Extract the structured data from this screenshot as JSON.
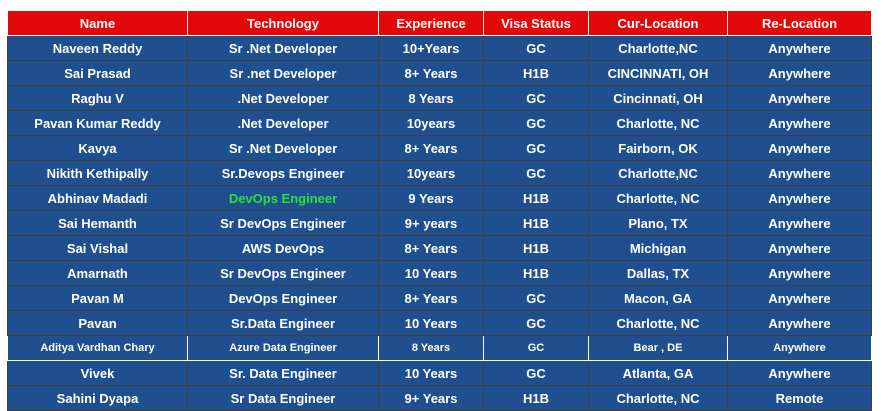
{
  "table": {
    "header": [
      "Name",
      "Technology",
      "Experience",
      "Visa Status",
      "Cur-Location",
      "Re-Location"
    ],
    "rows": [
      [
        "Naveen Reddy",
        "Sr .Net Developer",
        "10+Years",
        "GC",
        "Charlotte,NC",
        "Anywhere"
      ],
      [
        "Sai Prasad",
        "Sr .net Developer",
        "8+ Years",
        "H1B",
        "CINCINNATI, OH",
        "Anywhere"
      ],
      [
        "Raghu V",
        ".Net Developer",
        "8 Years",
        "GC",
        "Cincinnati, OH",
        "Anywhere"
      ],
      [
        "Pavan Kumar Reddy",
        ".Net Developer",
        "10years",
        "GC",
        "Charlotte, NC",
        "Anywhere"
      ],
      [
        "Kavya",
        "Sr .Net Developer",
        "8+ Years",
        "GC",
        "Fairborn, OK",
        "Anywhere"
      ],
      [
        "Nikith Kethipally",
        "Sr.Devops Engineer",
        "10years",
        "GC",
        "Charlotte,NC",
        "Anywhere"
      ],
      [
        "Abhinav Madadi",
        "DevOps Engineer",
        "9 Years",
        "H1B",
        "Charlotte, NC",
        "Anywhere"
      ],
      [
        "Sai Hemanth",
        "Sr DevOps Engineer",
        "9+ years",
        "H1B",
        "Plano, TX",
        "Anywhere"
      ],
      [
        "Sai Vishal",
        "AWS DevOps",
        "8+ Years",
        "H1B",
        "Michigan",
        "Anywhere"
      ],
      [
        "Amarnath",
        "Sr DevOps Engineer",
        "10 Years",
        "H1B",
        "Dallas, TX",
        "Anywhere"
      ],
      [
        "Pavan M",
        "DevOps Engineer",
        "8+ Years",
        "GC",
        "Macon, GA",
        "Anywhere"
      ],
      [
        "Pavan",
        "Sr.Data Engineer",
        "10 Years",
        "GC",
        "Charlotte, NC",
        "Anywhere"
      ],
      [
        "Aditya Vardhan Chary",
        "Azure Data Engineer",
        "8 Years",
        "GC",
        "Bear , DE",
        "Anywhere"
      ],
      [
        "Vivek",
        "Sr. Data Engineer",
        "10 Years",
        "GC",
        "Atlanta, GA",
        "Anywhere"
      ],
      [
        "Sahini Dyapa",
        "Sr Data Engineer",
        "9+ Years",
        "H1B",
        "Charlotte, NC",
        "Remote"
      ]
    ]
  }
}
